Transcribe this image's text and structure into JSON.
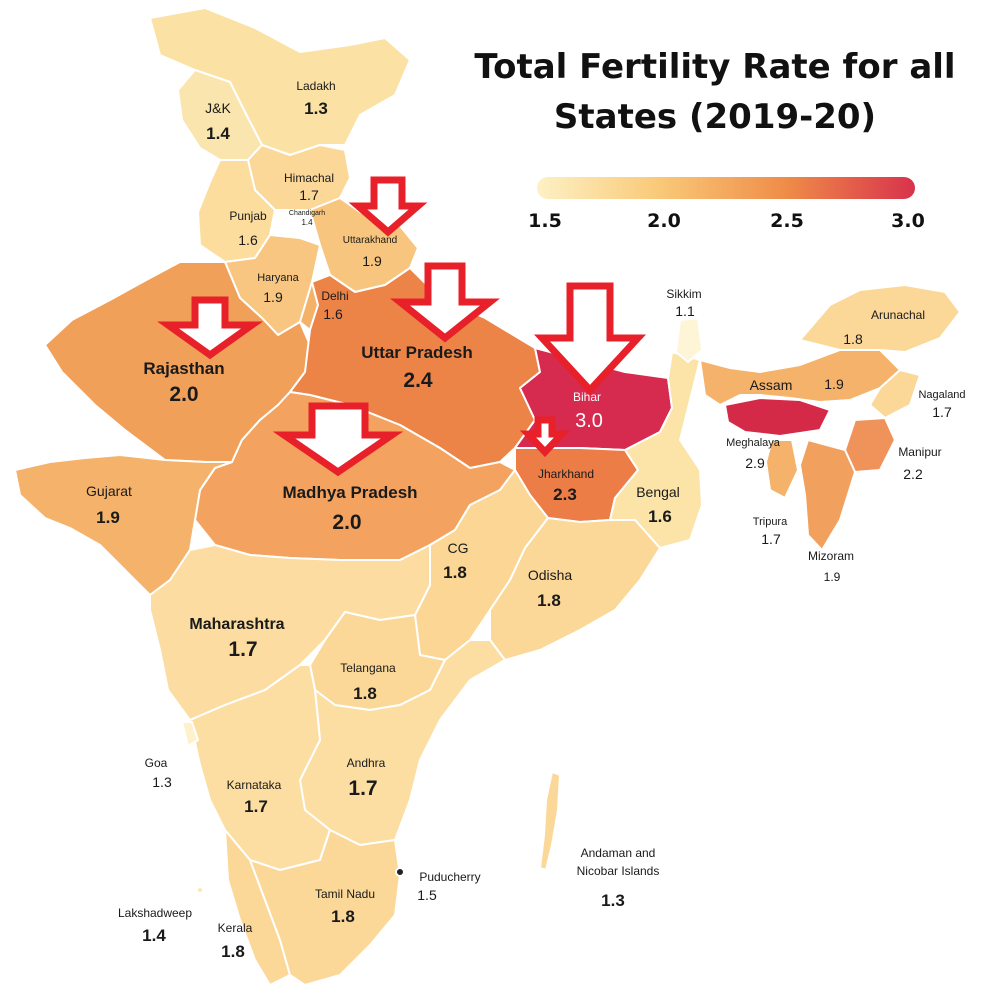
{
  "title": "Total Fertility Rate for all States (2019-20)",
  "legend": {
    "ticks": [
      "1.5",
      "2.0",
      "2.5",
      "3.0"
    ],
    "colors": [
      "#fdf1c4",
      "#f9c877",
      "#ef8c48",
      "#d8324c"
    ]
  },
  "chart_data": {
    "type": "choropleth",
    "title": "Total Fertility Rate for all States (2019-20)",
    "scale": [
      1.5,
      3.0
    ],
    "states": [
      {
        "name": "Ladakh",
        "value": "1.3"
      },
      {
        "name": "J&K",
        "value": "1.4"
      },
      {
        "name": "Himachal",
        "value": "1.7"
      },
      {
        "name": "Punjab",
        "value": "1.6"
      },
      {
        "name": "Chandigarh",
        "value": "1.4"
      },
      {
        "name": "Uttarakhand",
        "value": "1.9"
      },
      {
        "name": "Haryana",
        "value": "1.9"
      },
      {
        "name": "Delhi",
        "value": "1.6"
      },
      {
        "name": "Rajasthan",
        "value": "2.0"
      },
      {
        "name": "Uttar Pradesh",
        "value": "2.4"
      },
      {
        "name": "Bihar",
        "value": "3.0"
      },
      {
        "name": "Sikkim",
        "value": "1.1"
      },
      {
        "name": "Arunachal",
        "value": "1.8"
      },
      {
        "name": "Assam",
        "value": "1.9"
      },
      {
        "name": "Nagaland",
        "value": "1.7"
      },
      {
        "name": "Meghalaya",
        "value": "2.9"
      },
      {
        "name": "Manipur",
        "value": "2.2"
      },
      {
        "name": "Tripura",
        "value": "1.7"
      },
      {
        "name": "Mizoram",
        "value": "1.9"
      },
      {
        "name": "Jharkhand",
        "value": "2.3"
      },
      {
        "name": "Bengal",
        "value": "1.6"
      },
      {
        "name": "Gujarat",
        "value": "1.9"
      },
      {
        "name": "Madhya Pradesh",
        "value": "2.0"
      },
      {
        "name": "CG",
        "value": "1.8"
      },
      {
        "name": "Odisha",
        "value": "1.8"
      },
      {
        "name": "Maharashtra",
        "value": "1.7"
      },
      {
        "name": "Telangana",
        "value": "1.8"
      },
      {
        "name": "Goa",
        "value": "1.3"
      },
      {
        "name": "Karnataka",
        "value": "1.7"
      },
      {
        "name": "Andhra",
        "value": "1.7"
      },
      {
        "name": "Puducherry",
        "value": "1.5"
      },
      {
        "name": "Andaman and Nicobar Islands",
        "value": "1.3"
      },
      {
        "name": "Tamil Nadu",
        "value": "1.8"
      },
      {
        "name": "Lakshadweep",
        "value": "1.4"
      },
      {
        "name": "Kerala",
        "value": "1.8"
      }
    ]
  },
  "labels": {
    "ladakh": {
      "name": "Ladakh",
      "value": "1.3"
    },
    "jk": {
      "name": "J&K",
      "value": "1.4"
    },
    "himachal": {
      "name": "Himachal",
      "value": "1.7"
    },
    "punjab": {
      "name": "Punjab",
      "value": "1.6"
    },
    "chandigarh": {
      "name": "Chandigarh",
      "value": "1.4"
    },
    "uttarakhand": {
      "name": "Uttarakhand",
      "value": "1.9"
    },
    "haryana": {
      "name": "Haryana",
      "value": "1.9"
    },
    "delhi": {
      "name": "Delhi",
      "value": "1.6"
    },
    "rajasthan": {
      "name": "Rajasthan",
      "value": "2.0"
    },
    "up": {
      "name": "Uttar Pradesh",
      "value": "2.4"
    },
    "bihar": {
      "name": "Bihar",
      "value": "3.0"
    },
    "sikkim": {
      "name": "Sikkim",
      "value": "1.1"
    },
    "arunachal": {
      "name": "Arunachal",
      "value": "1.8"
    },
    "assam": {
      "name": "Assam",
      "value": "1.9"
    },
    "nagaland": {
      "name": "Nagaland",
      "value": "1.7"
    },
    "meghalaya": {
      "name": "Meghalaya",
      "value": "2.9"
    },
    "manipur": {
      "name": "Manipur",
      "value": "2.2"
    },
    "tripura": {
      "name": "Tripura",
      "value": "1.7"
    },
    "mizoram": {
      "name": "Mizoram",
      "value": "1.9"
    },
    "jharkhand": {
      "name": "Jharkhand",
      "value": "2.3"
    },
    "bengal": {
      "name": "Bengal",
      "value": "1.6"
    },
    "gujarat": {
      "name": "Gujarat",
      "value": "1.9"
    },
    "mp": {
      "name": "Madhya Pradesh",
      "value": "2.0"
    },
    "cg": {
      "name": "CG",
      "value": "1.8"
    },
    "odisha": {
      "name": "Odisha",
      "value": "1.8"
    },
    "maharashtra": {
      "name": "Maharashtra",
      "value": "1.7"
    },
    "telangana": {
      "name": "Telangana",
      "value": "1.8"
    },
    "goa": {
      "name": "Goa",
      "value": "1.3"
    },
    "karnataka": {
      "name": "Karnataka",
      "value": "1.7"
    },
    "andhra": {
      "name": "Andhra",
      "value": "1.7"
    },
    "puducherry": {
      "name": "Puducherry",
      "value": "1.5"
    },
    "andaman": {
      "name1": "Andaman and",
      "name2": "Nicobar Islands",
      "value": "1.3"
    },
    "tamilnadu": {
      "name": "Tamil Nadu",
      "value": "1.8"
    },
    "lakshadweep": {
      "name": "Lakshadweep",
      "value": "1.4"
    },
    "kerala": {
      "name": "Kerala",
      "value": "1.8"
    }
  }
}
